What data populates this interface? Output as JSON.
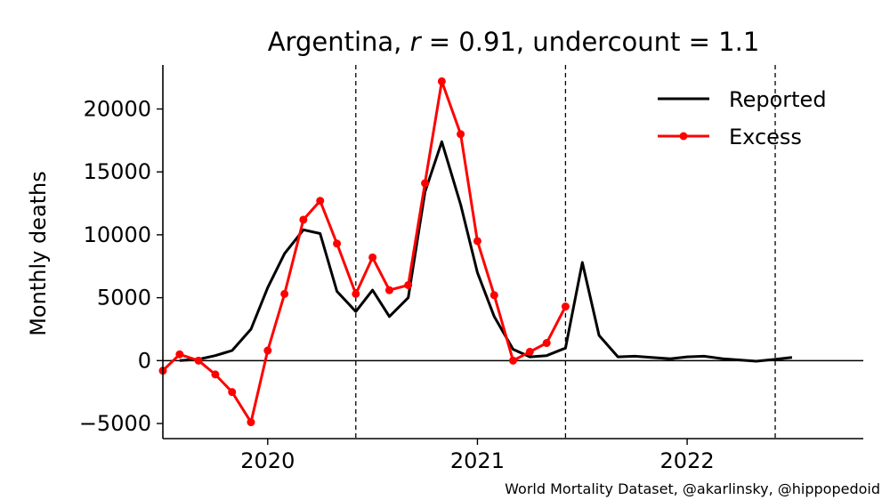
{
  "chart_data": {
    "type": "line",
    "title_parts": {
      "country": "Argentina,",
      "r_symbol": "r",
      "r_value": "= 0.91,",
      "undercount_label": "undercount",
      "undercount_value": "= 1.1"
    },
    "xlabel": "",
    "ylabel": "Monthly deaths",
    "xlim": [
      2019.5,
      2022.84
    ],
    "ylim": [
      -6200,
      23500
    ],
    "yticks": [
      -5000,
      0,
      5000,
      10000,
      15000,
      20000
    ],
    "ytick_labels": [
      "−5000",
      "0",
      "5000",
      "10000",
      "15000",
      "20000"
    ],
    "xticks": [
      2020,
      2021,
      2022
    ],
    "xtick_labels": [
      "2020",
      "2021",
      "2022"
    ],
    "vlines": [
      2020.42,
      2021.42,
      2022.42
    ],
    "hline": 0,
    "legend_position": "top-right",
    "grid": false,
    "series": [
      {
        "name": "Reported",
        "color": "#000000",
        "marker": false,
        "x": [
          2019.58,
          2019.67,
          2019.75,
          2019.83,
          2019.92,
          2020.0,
          2020.08,
          2020.17,
          2020.25,
          2020.33,
          2020.42,
          2020.5,
          2020.58,
          2020.67,
          2020.75,
          2020.83,
          2020.92,
          2021.0,
          2021.08,
          2021.17,
          2021.25,
          2021.33,
          2021.42,
          2021.5,
          2021.58,
          2021.67,
          2021.75,
          2021.83,
          2021.92,
          2022.0,
          2022.08,
          2022.17,
          2022.25,
          2022.33,
          2022.42,
          2022.5
        ],
        "values": [
          0,
          100,
          400,
          800,
          2500,
          5800,
          8500,
          10400,
          10100,
          5500,
          3900,
          5600,
          3500,
          5000,
          13400,
          17400,
          12400,
          7000,
          3500,
          900,
          300,
          400,
          1000,
          7800,
          2000,
          300,
          350,
          250,
          150,
          300,
          350,
          150,
          50,
          -50,
          100,
          250
        ]
      },
      {
        "name": "Excess",
        "color": "#ff0000",
        "marker": true,
        "x": [
          2019.5,
          2019.58,
          2019.67,
          2019.75,
          2019.83,
          2019.92,
          2020.0,
          2020.08,
          2020.17,
          2020.25,
          2020.33,
          2020.42,
          2020.5,
          2020.58,
          2020.67,
          2020.75,
          2020.83,
          2020.92,
          2021.0,
          2021.08,
          2021.17,
          2021.25,
          2021.33,
          2021.42
        ],
        "values": [
          -800,
          500,
          0,
          -1100,
          -2500,
          -4900,
          800,
          5300,
          11200,
          12700,
          9300,
          5300,
          8200,
          5600,
          6000,
          14100,
          22200,
          18000,
          9500,
          5200,
          0,
          700,
          1400,
          4300
        ]
      }
    ],
    "annotation": "World Mortality Dataset, @akarlinsky, @hippopedoid"
  },
  "colors": {
    "reported": "#000000",
    "excess": "#ff0000",
    "axis": "#000000"
  }
}
